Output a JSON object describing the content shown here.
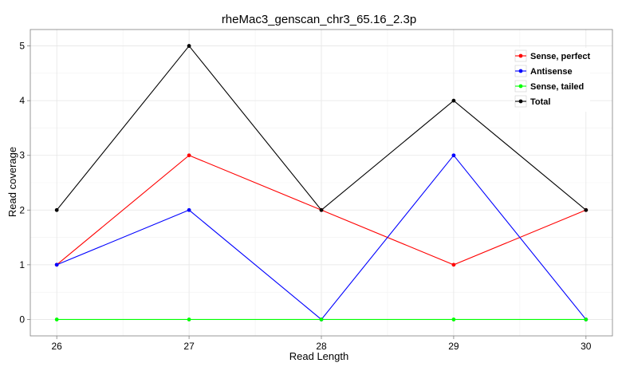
{
  "chart_data": {
    "type": "line",
    "title": "rheMac3_genscan_chr3_65.16_2.3p",
    "xlabel": "Read Length",
    "ylabel": "Read coverage",
    "x": [
      26,
      27,
      28,
      29,
      30
    ],
    "xlim": [
      25.8,
      30.2
    ],
    "ylim": [
      -0.3,
      5.3
    ],
    "x_ticks": [
      "26",
      "27",
      "28",
      "29",
      "30"
    ],
    "y_ticks": [
      "0",
      "1",
      "2",
      "3",
      "4",
      "5"
    ],
    "grid": true,
    "legend_position": "top-right",
    "series": [
      {
        "name": "Sense, perfect",
        "color": "#ff0000",
        "values": [
          1,
          3,
          2,
          1,
          2
        ]
      },
      {
        "name": "Antisense",
        "color": "#0000ff",
        "values": [
          1,
          2,
          0,
          3,
          0
        ]
      },
      {
        "name": "Sense, tailed",
        "color": "#00ff00",
        "values": [
          0,
          0,
          0,
          0,
          0
        ]
      },
      {
        "name": "Total",
        "color": "#000000",
        "values": [
          2,
          5,
          2,
          4,
          2
        ]
      }
    ]
  }
}
